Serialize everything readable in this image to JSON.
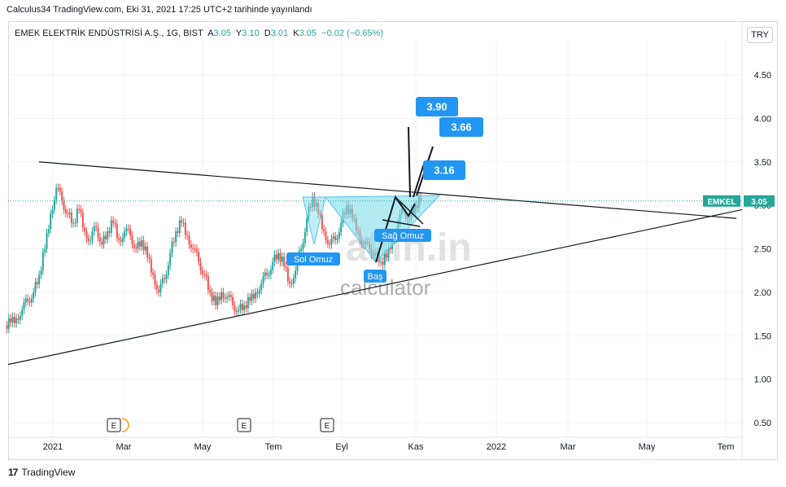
{
  "header": {
    "published": "Calculus34 TradingView.com, Eki 31, 2021 17:25 UTC+2 tarihinde yayınlandı"
  },
  "symbol": {
    "name": "EMEK ELEKTRİK ENDÜSTRİSİ A.Ş., 1G, BIST",
    "o_label": "A",
    "o_value": "3.05",
    "h_label": "Y",
    "h_value": "3.10",
    "l_label": "D",
    "l_value": "3.01",
    "c_label": "K",
    "c_value": "3.05",
    "change": "−0.02 (−0.65%)"
  },
  "currency": "TRY",
  "price_tag": {
    "ticker": "EMKEL",
    "value": "3.05"
  },
  "footer": {
    "brand": "TradingView"
  },
  "watermark": {
    "brand": "altın.in",
    "sub": "calculator"
  },
  "colors": {
    "up": "#26a69a",
    "down": "#ef5350",
    "label": "#2196f3",
    "tag": "#26a69a"
  },
  "chart_data": {
    "type": "candlestick",
    "x_ticks": [
      "2021",
      "Mar",
      "May",
      "Tem",
      "Eyl",
      "Kas",
      "2022",
      "Mar",
      "May",
      "Tem"
    ],
    "y_ticks": [
      0.5,
      1.0,
      1.5,
      2.0,
      2.5,
      3.0,
      3.5,
      4.0,
      4.5
    ],
    "y_tick_labels": [
      "0.50",
      "1.00",
      "1.50",
      "2.00",
      "2.50",
      "3.00",
      "3.50",
      "4.00",
      "4.50"
    ],
    "ylim": [
      0.5,
      4.5
    ],
    "last_price": 3.05,
    "price_series_closes": [
      1.65,
      1.7,
      1.8,
      1.9,
      2.0,
      2.2,
      2.5,
      2.9,
      3.2,
      3.05,
      2.9,
      2.8,
      2.95,
      2.7,
      2.6,
      2.75,
      2.55,
      2.7,
      2.8,
      2.6,
      2.7,
      2.65,
      2.5,
      2.6,
      2.4,
      2.2,
      2.0,
      2.15,
      2.45,
      2.7,
      2.8,
      2.65,
      2.5,
      2.35,
      2.2,
      2.0,
      1.85,
      2.0,
      1.95,
      1.85,
      1.8,
      1.85,
      1.9,
      2.0,
      2.1,
      2.2,
      2.35,
      2.45,
      2.3,
      2.1,
      2.25,
      2.5,
      2.85,
      3.1,
      2.9,
      2.7,
      2.55,
      2.6,
      2.8,
      3.0,
      2.85,
      2.7,
      2.55,
      2.5,
      2.45,
      2.35,
      2.4,
      2.6,
      2.8,
      2.95,
      2.85,
      3.0,
      3.05
    ],
    "annotations": [
      {
        "text": "Sol Omuz"
      },
      {
        "text": "Baş"
      },
      {
        "text": "Sağ Omuz"
      },
      {
        "text": "3.90",
        "price": 3.9
      },
      {
        "text": "3.66",
        "price": 3.66
      },
      {
        "text": "3.16",
        "price": 3.16
      }
    ],
    "earnings_markers": [
      "E",
      "E",
      "E"
    ],
    "trendlines": [
      {
        "name": "upper",
        "from": 3.5,
        "to": 2.85
      },
      {
        "name": "lower",
        "from": 1.17,
        "to": 2.95
      }
    ]
  }
}
